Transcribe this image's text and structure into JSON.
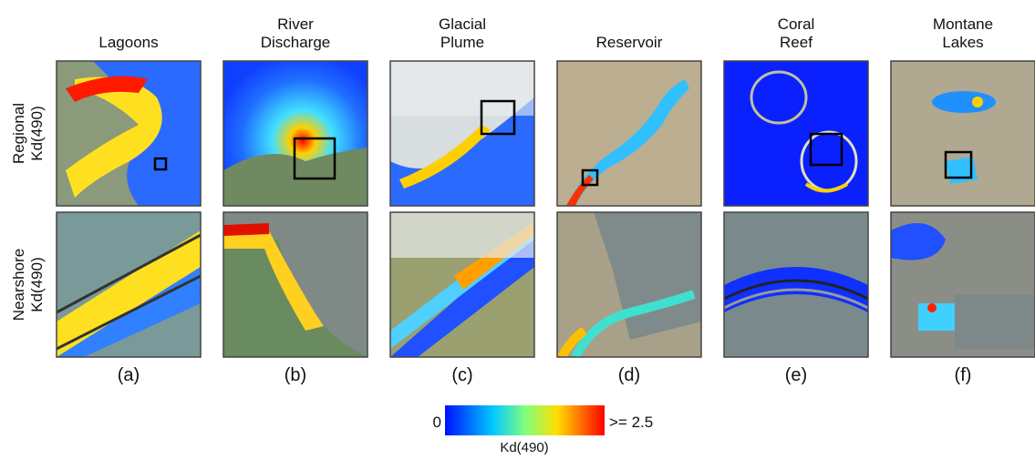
{
  "columns": [
    {
      "title": [
        "Lagoons"
      ],
      "label": "(a)"
    },
    {
      "title": [
        "River",
        "Discharge"
      ],
      "label": "(b)"
    },
    {
      "title": [
        "Glacial",
        "Plume"
      ],
      "label": "(c)"
    },
    {
      "title": [
        "Reservoir"
      ],
      "label": "(d)"
    },
    {
      "title": [
        "Coral",
        "Reef"
      ],
      "label": "(e)"
    },
    {
      "title": [
        "Montane",
        "Lakes"
      ],
      "label": "(f)"
    }
  ],
  "rows": [
    [
      "Regional",
      "Kd(490)"
    ],
    [
      "Nearshore",
      "Kd(490)"
    ]
  ],
  "colorbar": {
    "min_label": "0",
    "max_label": ">= 2.5",
    "title": "Kd(490)"
  }
}
